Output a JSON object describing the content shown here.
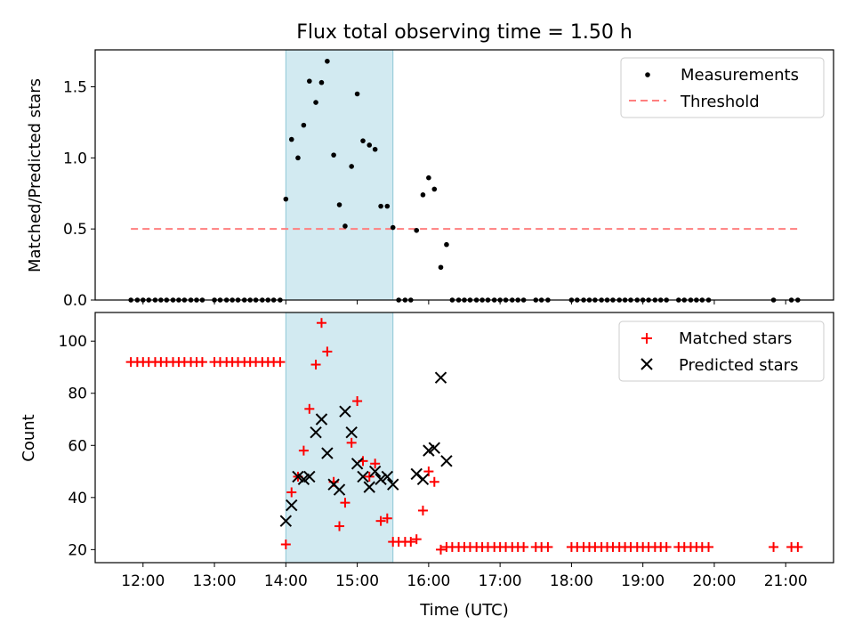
{
  "figure": {
    "title": "Flux total observing time = 1.50 h",
    "xlabel": "Time (UTC)",
    "x_ticks": [
      "12:00",
      "13:00",
      "14:00",
      "15:00",
      "16:00",
      "17:00",
      "18:00",
      "19:00",
      "20:00",
      "21:00"
    ],
    "shaded_span": {
      "start": "14:00",
      "end": "15:30",
      "color": "#add8e6"
    }
  },
  "colors": {
    "measurements": "#000000",
    "threshold": "#ff7f7f",
    "matched": "#ff0000",
    "predicted": "#000000",
    "span": "#add8e6"
  },
  "chart_data": [
    {
      "type": "scatter",
      "title": "Flux total observing time = 1.50 h",
      "xlabel": "",
      "ylabel": "Matched/Predicted stars",
      "xlim": [
        11.33,
        21.67
      ],
      "ylim": [
        0,
        1.76
      ],
      "y_ticks": [
        "0.0",
        "0.5",
        "1.0",
        "1.5"
      ],
      "legend_position": "top-right",
      "legend": [
        "Measurements",
        "Threshold"
      ],
      "threshold": {
        "name": "Threshold",
        "y": 0.5,
        "x_range": [
          11.83,
          21.17
        ]
      },
      "series": [
        {
          "name": "Measurements",
          "zero_x": [
            11.83,
            11.92,
            12.0,
            12.08,
            12.17,
            12.25,
            12.33,
            12.42,
            12.5,
            12.58,
            12.67,
            12.75,
            12.83,
            13.0,
            13.08,
            13.17,
            13.25,
            13.33,
            13.42,
            13.5,
            13.58,
            13.67,
            13.75,
            13.83,
            13.92,
            15.58,
            15.67,
            15.75,
            16.33,
            16.42,
            16.5,
            16.58,
            16.67,
            16.75,
            16.83,
            16.92,
            17.0,
            17.08,
            17.17,
            17.25,
            17.33,
            17.5,
            17.58,
            17.67,
            18.0,
            18.08,
            18.17,
            18.25,
            18.33,
            18.42,
            18.5,
            18.58,
            18.67,
            18.75,
            18.83,
            18.92,
            19.0,
            19.08,
            19.17,
            19.25,
            19.33,
            19.5,
            19.58,
            19.67,
            19.75,
            19.83,
            19.92,
            20.83,
            21.08,
            21.17
          ],
          "points": [
            [
              14.0,
              0.71
            ],
            [
              14.08,
              1.13
            ],
            [
              14.17,
              1.0
            ],
            [
              14.25,
              1.23
            ],
            [
              14.33,
              1.54
            ],
            [
              14.42,
              1.39
            ],
            [
              14.5,
              1.53
            ],
            [
              14.58,
              1.68
            ],
            [
              14.67,
              1.02
            ],
            [
              14.75,
              0.67
            ],
            [
              14.83,
              0.52
            ],
            [
              14.92,
              0.94
            ],
            [
              15.0,
              1.45
            ],
            [
              15.08,
              1.12
            ],
            [
              15.17,
              1.09
            ],
            [
              15.25,
              1.06
            ],
            [
              15.33,
              0.66
            ],
            [
              15.42,
              0.66
            ],
            [
              15.5,
              0.51
            ],
            [
              15.83,
              0.49
            ],
            [
              15.92,
              0.74
            ],
            [
              16.0,
              0.86
            ],
            [
              16.08,
              0.78
            ],
            [
              16.17,
              0.23
            ],
            [
              16.25,
              0.39
            ]
          ]
        }
      ]
    },
    {
      "type": "scatter",
      "title": "",
      "xlabel": "Time (UTC)",
      "ylabel": "Count",
      "xlim": [
        11.33,
        21.67
      ],
      "ylim": [
        15,
        111
      ],
      "y_ticks": [
        "20",
        "40",
        "60",
        "80",
        "100"
      ],
      "legend_position": "top-right",
      "legend": [
        "Matched stars",
        "Predicted stars"
      ],
      "series": [
        {
          "name": "Matched stars",
          "flat_runs": [
            {
              "y": 92,
              "x": [
                11.83,
                11.92,
                12.0,
                12.08,
                12.17,
                12.25,
                12.33,
                12.42,
                12.5,
                12.58,
                12.67,
                12.75,
                12.83,
                13.0,
                13.08,
                13.17,
                13.25,
                13.33,
                13.42,
                13.5,
                13.58,
                13.67,
                13.75,
                13.83,
                13.92
              ]
            },
            {
              "y": 21,
              "x": [
                16.33,
                16.42,
                16.5,
                16.58,
                16.67,
                16.75,
                16.83,
                16.92,
                17.0,
                17.08,
                17.17,
                17.25,
                17.33,
                17.5,
                17.58,
                17.67,
                18.0,
                18.08,
                18.17,
                18.25,
                18.33,
                18.42,
                18.5,
                18.58,
                18.67,
                18.75,
                18.83,
                18.92,
                19.0,
                19.08,
                19.17,
                19.25,
                19.33,
                19.5,
                19.58,
                19.67,
                19.75,
                19.83,
                19.92,
                20.83,
                21.08,
                21.17
              ]
            }
          ],
          "points": [
            [
              14.0,
              22
            ],
            [
              14.08,
              42
            ],
            [
              14.17,
              48
            ],
            [
              14.25,
              58
            ],
            [
              14.33,
              74
            ],
            [
              14.42,
              91
            ],
            [
              14.5,
              107
            ],
            [
              14.58,
              96
            ],
            [
              14.67,
              46
            ],
            [
              14.75,
              29
            ],
            [
              14.83,
              38
            ],
            [
              14.92,
              61
            ],
            [
              15.0,
              77
            ],
            [
              15.08,
              54
            ],
            [
              15.17,
              48
            ],
            [
              15.25,
              53
            ],
            [
              15.33,
              31
            ],
            [
              15.42,
              32
            ],
            [
              15.5,
              23
            ],
            [
              15.58,
              23
            ],
            [
              15.67,
              23
            ],
            [
              15.75,
              23
            ],
            [
              15.83,
              24
            ],
            [
              15.92,
              35
            ],
            [
              16.0,
              50
            ],
            [
              16.08,
              46
            ],
            [
              16.17,
              20
            ],
            [
              16.25,
              21
            ]
          ]
        },
        {
          "name": "Predicted stars",
          "points": [
            [
              14.0,
              31
            ],
            [
              14.08,
              37
            ],
            [
              14.17,
              48
            ],
            [
              14.25,
              47
            ],
            [
              14.33,
              48
            ],
            [
              14.42,
              65
            ],
            [
              14.5,
              70
            ],
            [
              14.58,
              57
            ],
            [
              14.67,
              45
            ],
            [
              14.75,
              43
            ],
            [
              14.83,
              73
            ],
            [
              14.92,
              65
            ],
            [
              15.0,
              53
            ],
            [
              15.08,
              48
            ],
            [
              15.17,
              44
            ],
            [
              15.25,
              50
            ],
            [
              15.33,
              47
            ],
            [
              15.42,
              48
            ],
            [
              15.5,
              45
            ],
            [
              15.83,
              49
            ],
            [
              15.92,
              47
            ],
            [
              16.0,
              58
            ],
            [
              16.08,
              59
            ],
            [
              16.17,
              86
            ],
            [
              16.25,
              54
            ]
          ]
        }
      ]
    }
  ]
}
